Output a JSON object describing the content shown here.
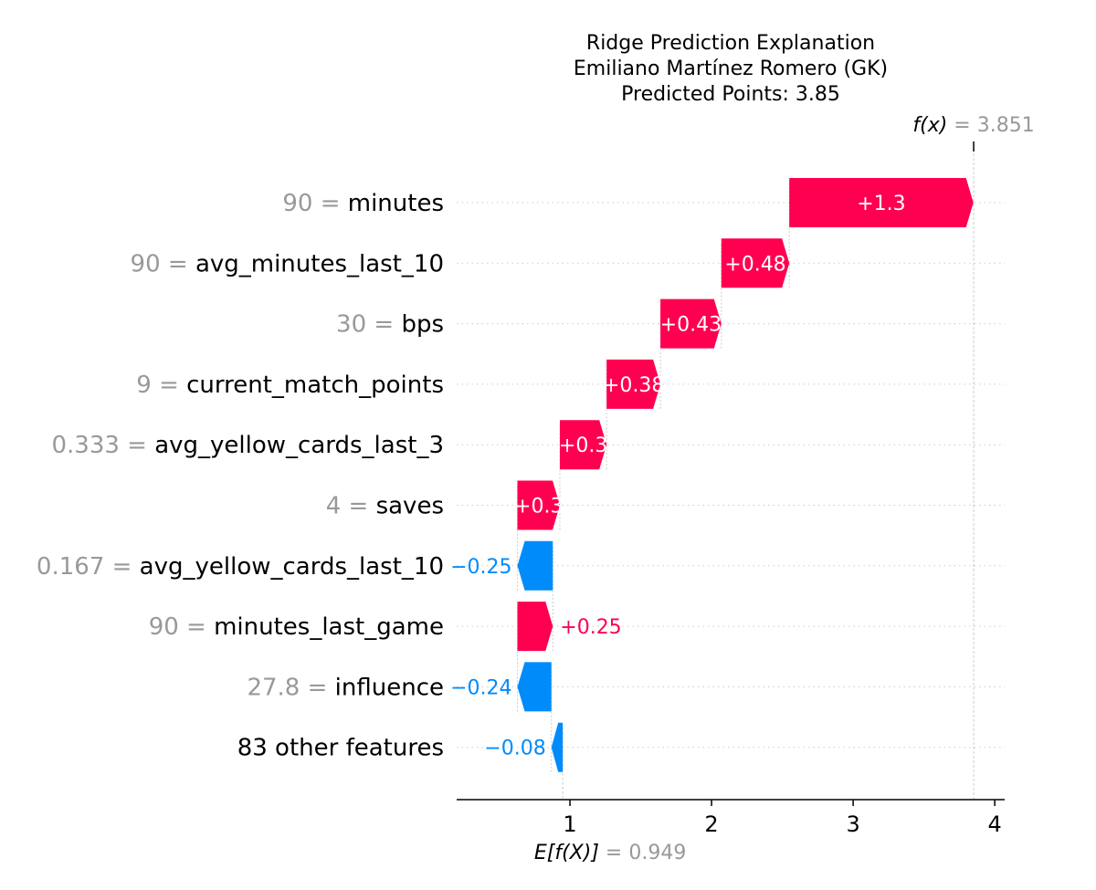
{
  "chart_data": {
    "type": "waterfall",
    "title_lines": [
      "Ridge Prediction Explanation",
      "Emiliano Martínez Romero (GK)",
      "Predicted Points: 3.85"
    ],
    "base_value": 0.949,
    "base_label": "E[f(X)]",
    "base_value_text": "= 0.949",
    "output_value": 3.851,
    "output_label": "f(x)",
    "output_value_text": "= 3.851",
    "xlim": [
      0.2,
      4.07
    ],
    "xticks": [
      1,
      2,
      3,
      4
    ],
    "features": [
      {
        "value": "90",
        "name": "minutes",
        "shap": 1.3,
        "label": "+1.3"
      },
      {
        "value": "90",
        "name": "avg_minutes_last_10",
        "shap": 0.48,
        "label": "+0.48"
      },
      {
        "value": "30",
        "name": "bps",
        "shap": 0.43,
        "label": "+0.43"
      },
      {
        "value": "9",
        "name": "current_match_points",
        "shap": 0.38,
        "label": "+0.38"
      },
      {
        "value": "0.333",
        "name": "avg_yellow_cards_last_3",
        "shap": 0.33,
        "label": "+0.3"
      },
      {
        "value": "4",
        "name": "saves",
        "shap": 0.3,
        "label": "+0.3"
      },
      {
        "value": "0.167",
        "name": "avg_yellow_cards_last_10",
        "shap": -0.25,
        "label": "−0.25"
      },
      {
        "value": "90",
        "name": "minutes_last_game",
        "shap": 0.25,
        "label": "+0.25"
      },
      {
        "value": "27.8",
        "name": "influence",
        "shap": -0.24,
        "label": "−0.24"
      },
      {
        "value": "",
        "name": "83 other features",
        "shap": -0.08,
        "label": "−0.08"
      }
    ],
    "colors": {
      "positive": "#ff0051",
      "negative": "#008bfb",
      "value_text": "#999999",
      "grid": "#cccccc"
    }
  }
}
